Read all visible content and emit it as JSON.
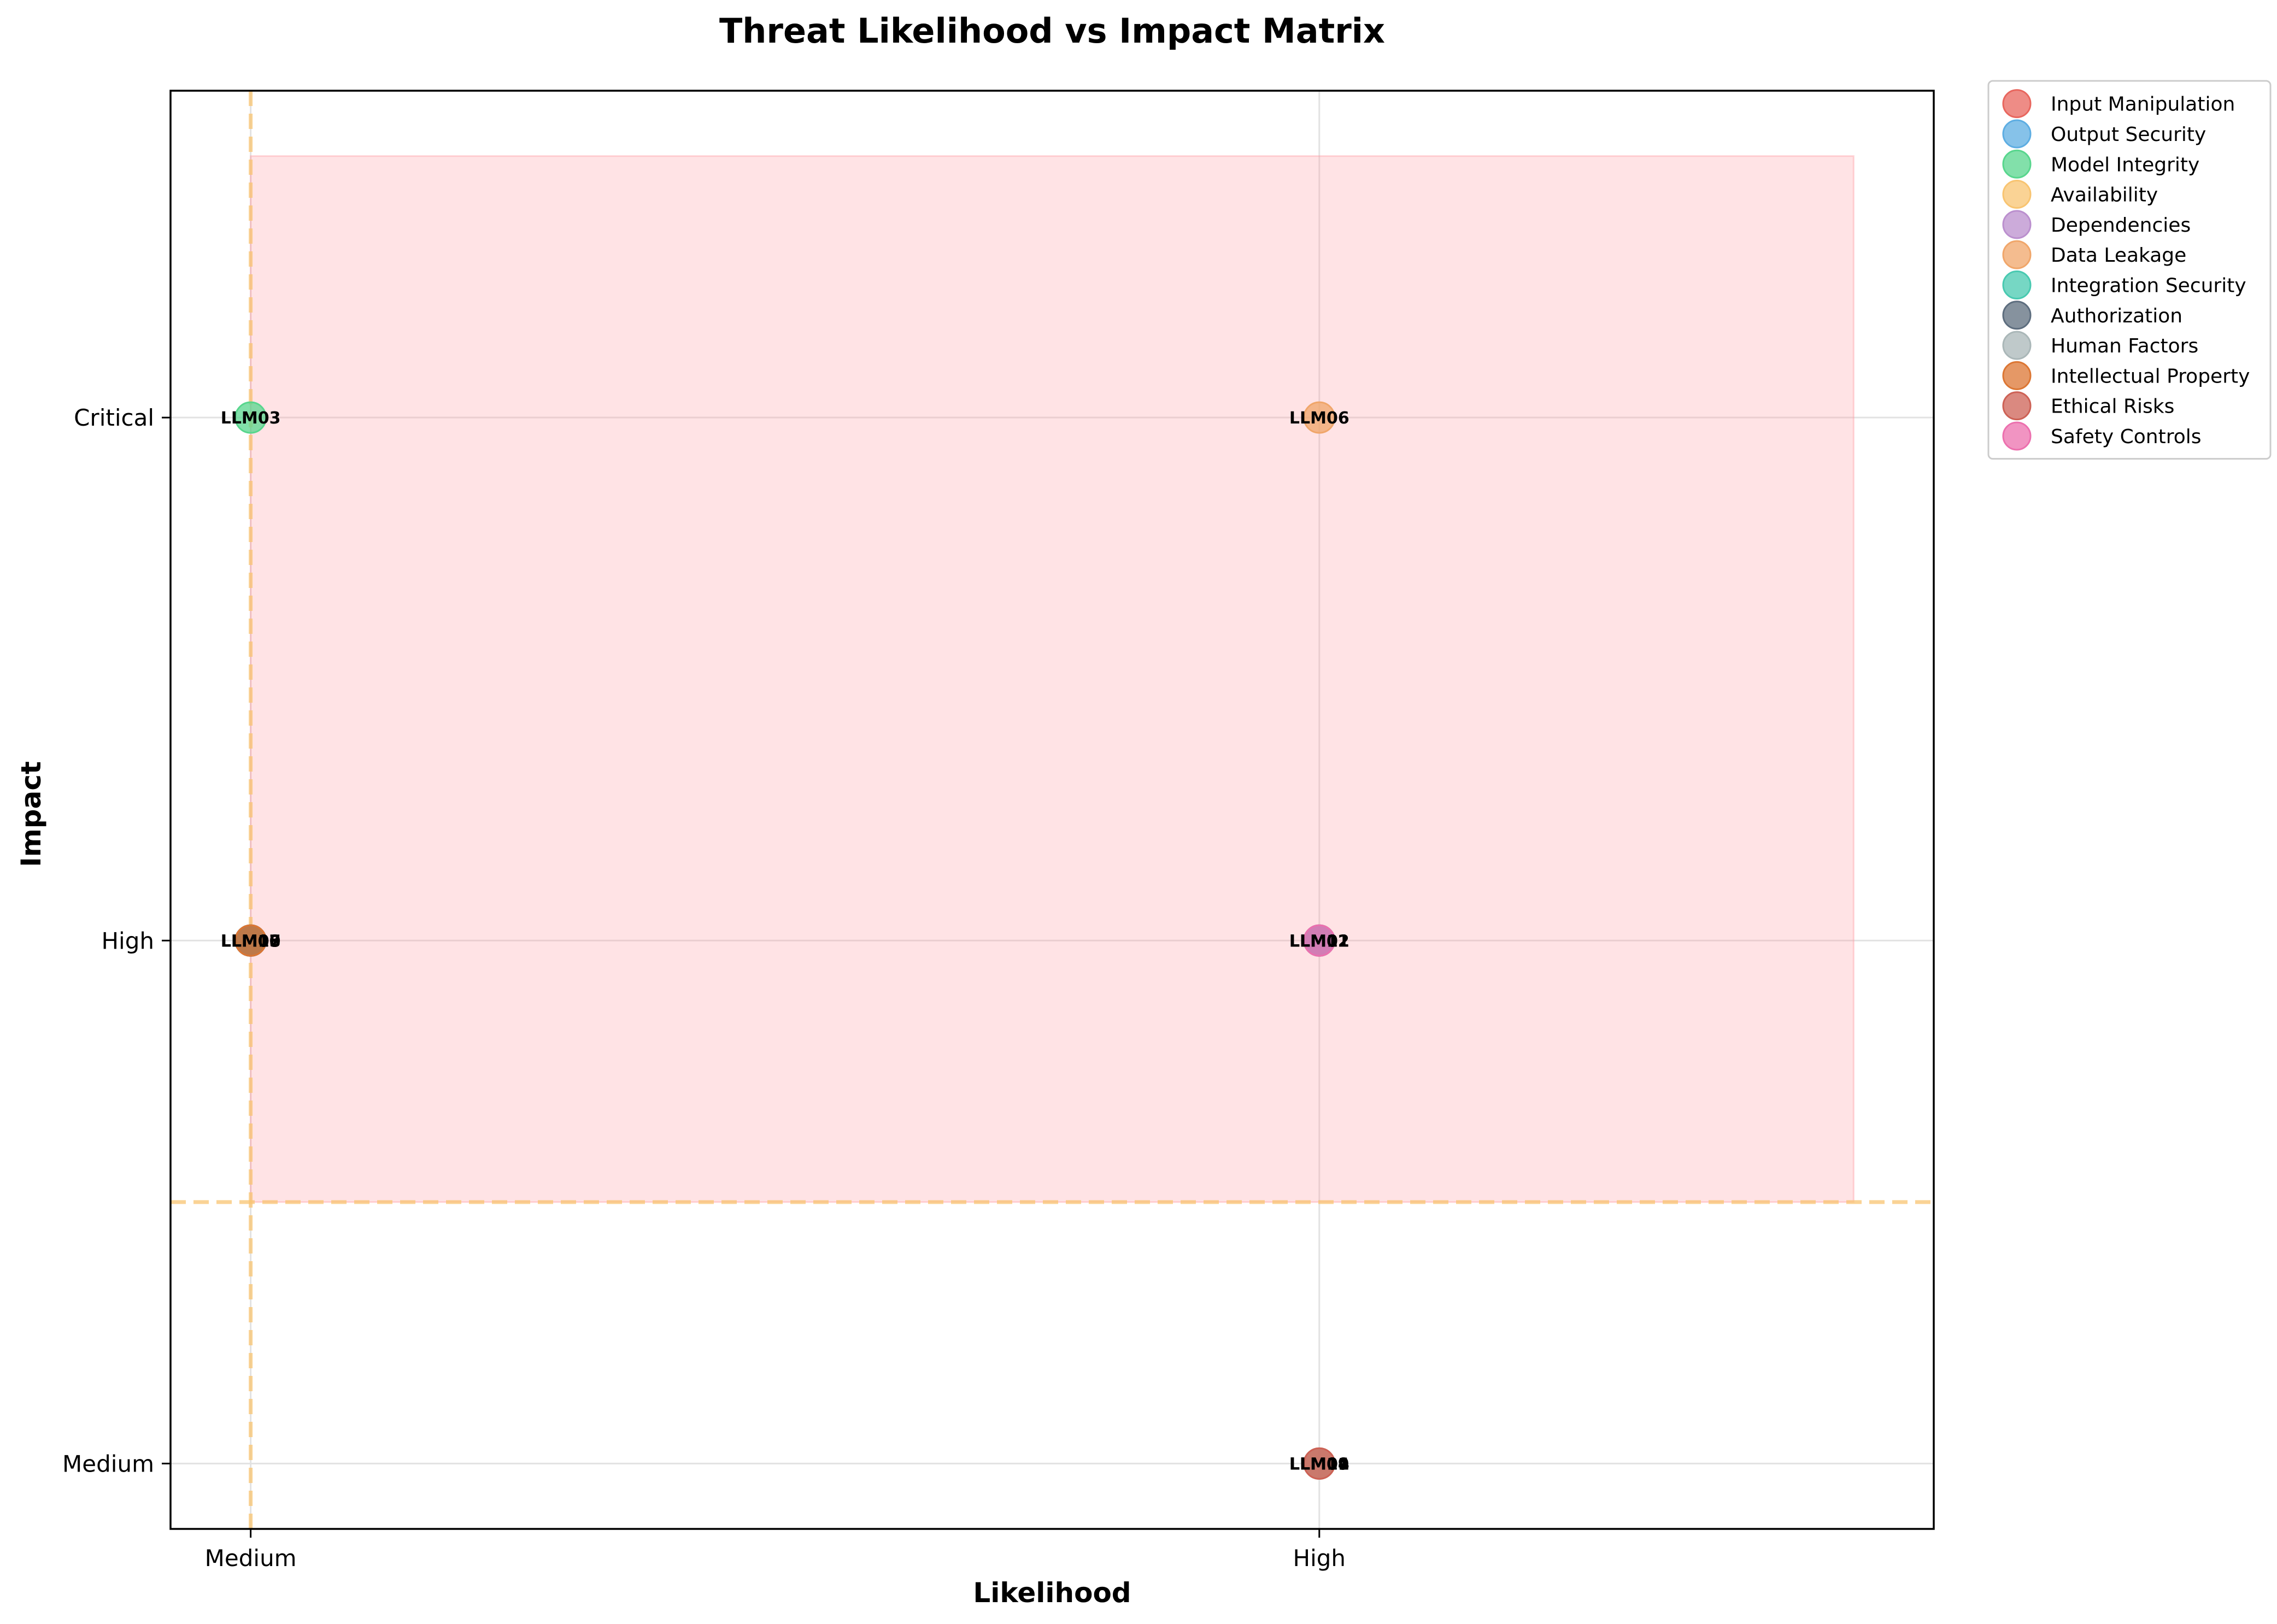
{
  "chart_data": {
    "type": "scatter",
    "title": "Threat Likelihood vs Impact Matrix",
    "xlabel": "Likelihood",
    "ylabel": "Impact",
    "x_categories": [
      "Medium",
      "High"
    ],
    "y_categories": [
      "Medium",
      "High",
      "Critical"
    ],
    "xlim": [
      -0.075,
      1.575
    ],
    "ylim": [
      -0.125,
      2.625
    ],
    "grid": true,
    "legend_placement": "upper-right-outside",
    "high_risk_zone": {
      "x": [
        0,
        1.5
      ],
      "y": [
        0.5,
        2.5
      ],
      "color": "#FF9AA2"
    },
    "threshold_lines": {
      "x": 0,
      "y": 0.5,
      "color": "#F8C471"
    },
    "series": [
      {
        "name": "Input Manipulation",
        "color": "#E8665E",
        "points": [
          {
            "id": "LLM01",
            "x": "High",
            "y": "High"
          }
        ]
      },
      {
        "name": "Output Security",
        "color": "#5DADE2",
        "points": [
          {
            "id": "LLM02",
            "x": "High",
            "y": "High"
          }
        ]
      },
      {
        "name": "Model Integrity",
        "color": "#58D68D",
        "points": [
          {
            "id": "LLM03",
            "x": "Medium",
            "y": "Critical"
          }
        ]
      },
      {
        "name": "Availability",
        "color": "#F8C471",
        "points": [
          {
            "id": "LLM04",
            "x": "High",
            "y": "Medium"
          }
        ]
      },
      {
        "name": "Dependencies",
        "color": "#BB8FCE",
        "points": [
          {
            "id": "LLM05",
            "x": "Medium",
            "y": "High"
          }
        ]
      },
      {
        "name": "Data Leakage",
        "color": "#F0A66A",
        "points": [
          {
            "id": "LLM06",
            "x": "High",
            "y": "Critical"
          }
        ]
      },
      {
        "name": "Integration Security",
        "color": "#48C9B0",
        "points": [
          {
            "id": "LLM07",
            "x": "Medium",
            "y": "High"
          }
        ]
      },
      {
        "name": "Authorization",
        "color": "#5D6D7E",
        "points": [
          {
            "id": "LLM08",
            "x": "Medium",
            "y": "High"
          }
        ]
      },
      {
        "name": "Human Factors",
        "color": "#AAB7B8",
        "points": [
          {
            "id": "LLM09",
            "x": "High",
            "y": "Medium"
          }
        ]
      },
      {
        "name": "Intellectual Property",
        "color": "#DC7633",
        "points": [
          {
            "id": "LLM10",
            "x": "Medium",
            "y": "High"
          }
        ]
      },
      {
        "name": "Ethical Risks",
        "color": "#CD6155",
        "points": [
          {
            "id": "LLM11",
            "x": "High",
            "y": "Medium"
          }
        ]
      },
      {
        "name": "Safety Controls",
        "color": "#EC70AE",
        "points": [
          {
            "id": "LLM12",
            "x": "High",
            "y": "High"
          }
        ]
      }
    ]
  }
}
